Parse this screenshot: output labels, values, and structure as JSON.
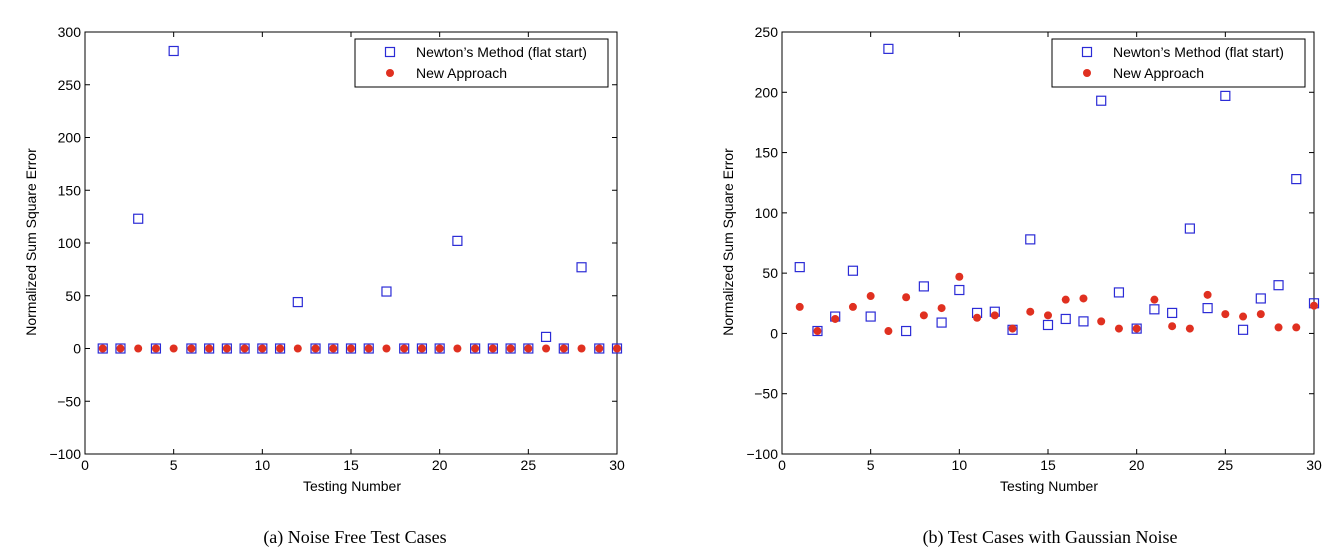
{
  "chart_data": [
    {
      "type": "scatter",
      "caption": "(a) Noise Free Test Cases",
      "xlabel": "Testing Number",
      "ylabel": "Normalized Sum Square Error",
      "xlim": [
        0,
        30
      ],
      "ylim": [
        -100,
        300
      ],
      "xticks": [
        0,
        5,
        10,
        15,
        20,
        25,
        30
      ],
      "yticks": [
        -100,
        -50,
        0,
        50,
        100,
        150,
        200,
        250,
        300
      ],
      "grid": false,
      "legend_position": "top-right",
      "series": [
        {
          "name": "Newton’s Method (flat start)",
          "marker": "open-square",
          "color": "#2b2bd6",
          "points": [
            [
              1,
              0
            ],
            [
              2,
              0
            ],
            [
              3,
              123
            ],
            [
              4,
              0
            ],
            [
              5,
              282
            ],
            [
              6,
              0
            ],
            [
              7,
              0
            ],
            [
              8,
              0
            ],
            [
              9,
              0
            ],
            [
              10,
              0
            ],
            [
              11,
              0
            ],
            [
              12,
              44
            ],
            [
              13,
              0
            ],
            [
              14,
              0
            ],
            [
              15,
              0
            ],
            [
              16,
              0
            ],
            [
              17,
              54
            ],
            [
              18,
              0
            ],
            [
              19,
              0
            ],
            [
              20,
              0
            ],
            [
              21,
              102
            ],
            [
              22,
              0
            ],
            [
              23,
              0
            ],
            [
              24,
              0
            ],
            [
              25,
              0
            ],
            [
              26,
              11
            ],
            [
              27,
              0
            ],
            [
              28,
              77
            ],
            [
              29,
              0
            ],
            [
              30,
              0
            ]
          ]
        },
        {
          "name": "New Approach",
          "marker": "filled-circle",
          "color": "#e03020",
          "points": [
            [
              1,
              0
            ],
            [
              2,
              0
            ],
            [
              3,
              0
            ],
            [
              4,
              0
            ],
            [
              5,
              0
            ],
            [
              6,
              0
            ],
            [
              7,
              0
            ],
            [
              8,
              0
            ],
            [
              9,
              0
            ],
            [
              10,
              0
            ],
            [
              11,
              0
            ],
            [
              12,
              0
            ],
            [
              13,
              0
            ],
            [
              14,
              0
            ],
            [
              15,
              0
            ],
            [
              16,
              0
            ],
            [
              17,
              0
            ],
            [
              18,
              0
            ],
            [
              19,
              0
            ],
            [
              20,
              0
            ],
            [
              21,
              0
            ],
            [
              22,
              0
            ],
            [
              23,
              0
            ],
            [
              24,
              0
            ],
            [
              25,
              0
            ],
            [
              26,
              0
            ],
            [
              27,
              0
            ],
            [
              28,
              0
            ],
            [
              29,
              0
            ],
            [
              30,
              0
            ]
          ]
        }
      ]
    },
    {
      "type": "scatter",
      "caption": "(b) Test Cases with Gaussian Noise",
      "xlabel": "Testing Number",
      "ylabel": "Normalized Sum Square Error",
      "xlim": [
        0,
        30
      ],
      "ylim": [
        -100,
        250
      ],
      "xticks": [
        0,
        5,
        10,
        15,
        20,
        25,
        30
      ],
      "yticks": [
        -100,
        -50,
        0,
        50,
        100,
        150,
        200,
        250
      ],
      "grid": false,
      "legend_position": "top-right",
      "series": [
        {
          "name": "Newton’s Method (flat start)",
          "marker": "open-square",
          "color": "#2b2bd6",
          "points": [
            [
              1,
              55
            ],
            [
              2,
              2
            ],
            [
              3,
              14
            ],
            [
              4,
              52
            ],
            [
              5,
              14
            ],
            [
              6,
              236
            ],
            [
              7,
              2
            ],
            [
              8,
              39
            ],
            [
              9,
              9
            ],
            [
              10,
              36
            ],
            [
              11,
              17
            ],
            [
              12,
              18
            ],
            [
              13,
              3
            ],
            [
              14,
              78
            ],
            [
              15,
              7
            ],
            [
              16,
              12
            ],
            [
              17,
              10
            ],
            [
              18,
              193
            ],
            [
              19,
              34
            ],
            [
              20,
              4
            ],
            [
              21,
              20
            ],
            [
              22,
              17
            ],
            [
              23,
              87
            ],
            [
              24,
              21
            ],
            [
              25,
              197
            ],
            [
              26,
              3
            ],
            [
              27,
              29
            ],
            [
              28,
              40
            ],
            [
              29,
              128
            ],
            [
              30,
              25
            ]
          ]
        },
        {
          "name": "New Approach",
          "marker": "filled-circle",
          "color": "#e03020",
          "points": [
            [
              1,
              22
            ],
            [
              2,
              2
            ],
            [
              3,
              12
            ],
            [
              4,
              22
            ],
            [
              5,
              31
            ],
            [
              6,
              2
            ],
            [
              7,
              30
            ],
            [
              8,
              15
            ],
            [
              9,
              21
            ],
            [
              10,
              47
            ],
            [
              11,
              13
            ],
            [
              12,
              15
            ],
            [
              13,
              4
            ],
            [
              14,
              18
            ],
            [
              15,
              15
            ],
            [
              16,
              28
            ],
            [
              17,
              29
            ],
            [
              18,
              10
            ],
            [
              19,
              4
            ],
            [
              20,
              4
            ],
            [
              21,
              28
            ],
            [
              22,
              6
            ],
            [
              23,
              4
            ],
            [
              24,
              32
            ],
            [
              25,
              16
            ],
            [
              26,
              14
            ],
            [
              27,
              16
            ],
            [
              28,
              5
            ],
            [
              29,
              5
            ],
            [
              30,
              23
            ]
          ]
        }
      ]
    }
  ]
}
